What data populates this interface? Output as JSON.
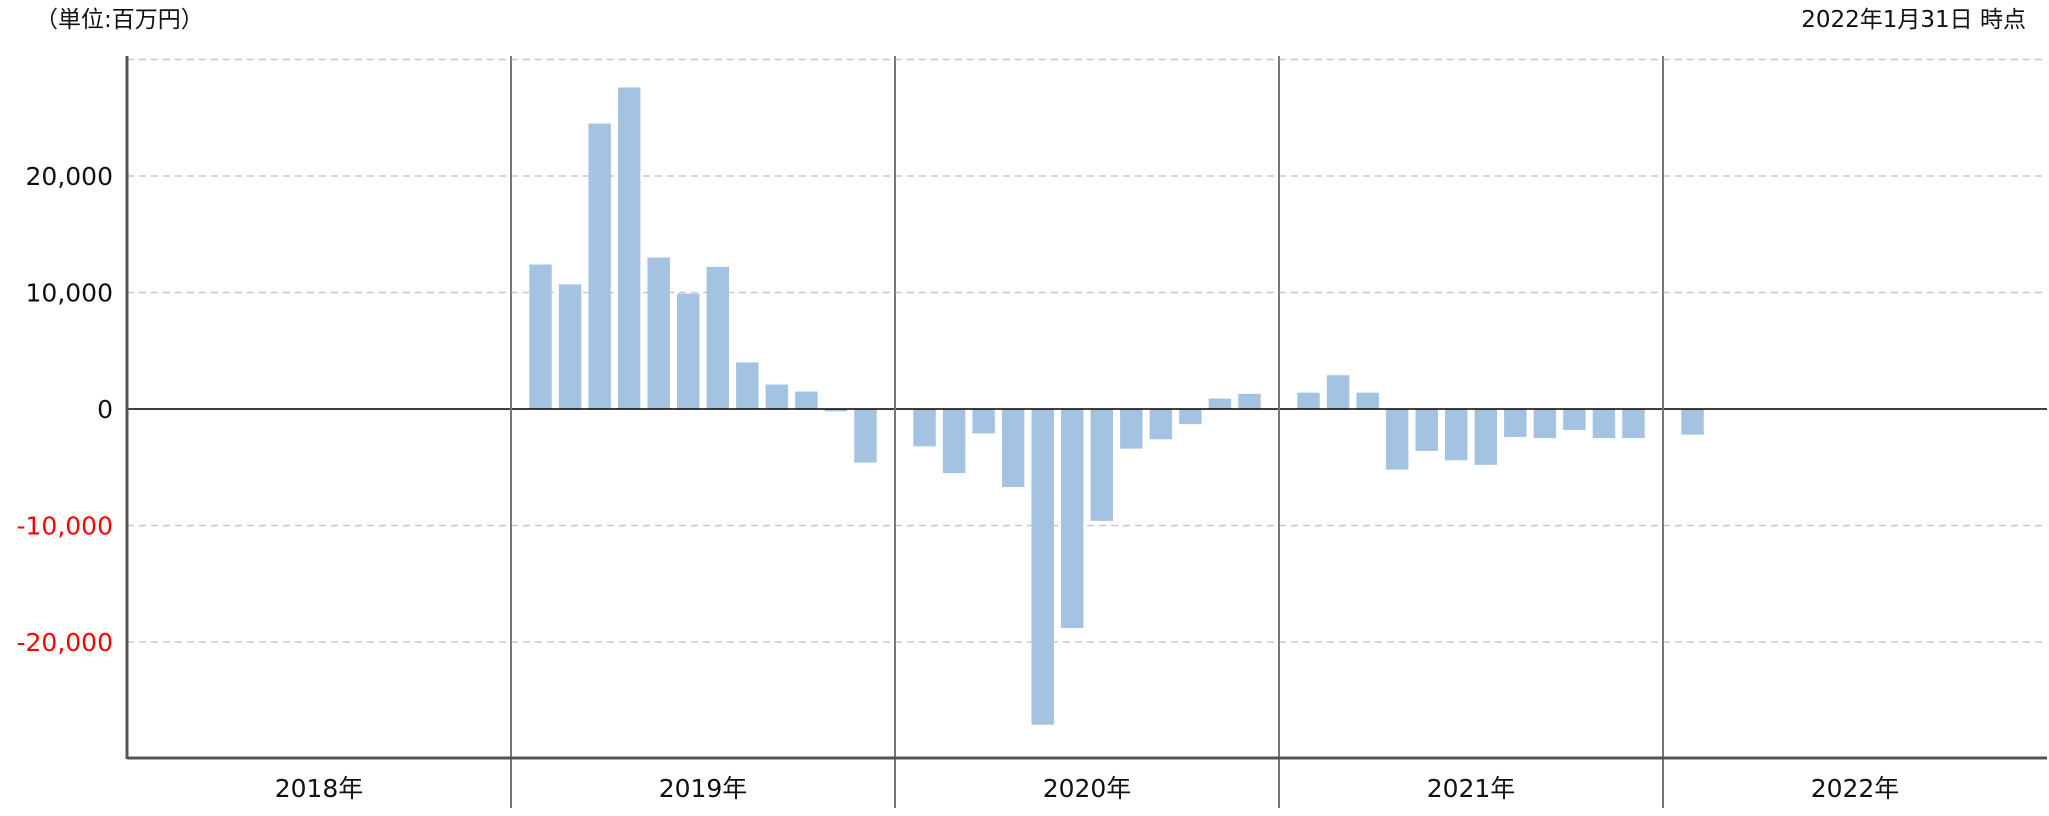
{
  "header": {
    "unit_label": "（単位:百万円）",
    "as_of_label": "2022年1月31日 時点"
  },
  "chart_data": {
    "type": "bar",
    "title": "",
    "xlabel": "",
    "ylabel": "",
    "ylim": [
      -30000,
      30000
    ],
    "y_ticks": [
      20000,
      10000,
      0,
      -10000,
      -20000
    ],
    "y_tick_labels": [
      "20,000",
      "10,000",
      "0",
      "-10,000",
      "-20,000"
    ],
    "negative_tick_color": "#ff0000",
    "bar_color": "#a4c3e2",
    "grid": true,
    "years": [
      "2018年",
      "2019年",
      "2020年",
      "2021年",
      "2022年"
    ],
    "months_per_year": 12,
    "series": [
      {
        "values": [
          null,
          null,
          null,
          null,
          null,
          null,
          null,
          null,
          null,
          null,
          null,
          null,
          12400,
          10700,
          24500,
          27600,
          13000,
          9900,
          12200,
          4000,
          2100,
          1500,
          -200,
          -4600,
          -3200,
          -5500,
          -2100,
          -6700,
          -27100,
          -18800,
          -9600,
          -3400,
          -2600,
          -1300,
          900,
          1300,
          1400,
          2900,
          1400,
          -5200,
          -3600,
          -4400,
          -4800,
          -2400,
          -2500,
          -1800,
          -2500,
          -2500,
          -2200,
          null,
          null,
          null,
          null,
          null,
          null,
          null,
          null,
          null,
          null,
          null
        ]
      }
    ]
  },
  "colors": {
    "axis": "#555555",
    "zero_line": "#000000",
    "gridline": "#c8c8c8"
  }
}
